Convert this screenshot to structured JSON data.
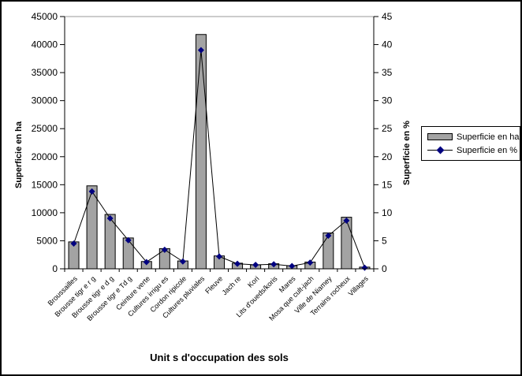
{
  "figure": {
    "background": "#ffffff",
    "border_color": "#000000"
  },
  "chart_data": {
    "type": "bar",
    "subtype": "combo-bar-line-dual-axis",
    "title": "",
    "xlabel": "Unit s d'occupation des sols",
    "ylabel_left": "Superficie en ha",
    "ylabel_right": "Superficie en %",
    "categories": [
      "Broussailles",
      "Brousse tigr e r g",
      "Brousse tigr e d g",
      "Brousse tigr e Td g",
      "Ceinture verte",
      "Cultures irrigu es",
      "Cordon ripicole",
      "Cultures pluviales",
      "Fleuve",
      "Jach re",
      "Kori",
      "Lits d'oueds/koris",
      "Mares",
      "Mosa que cult-jach",
      "Ville de Niamey",
      "Terrains rocheux",
      "Villages"
    ],
    "series": [
      {
        "name": "Superficie en ha",
        "type": "bar",
        "axis": "left",
        "color": "#a3a3a3",
        "values": [
          4800,
          14800,
          9700,
          5500,
          1300,
          3600,
          1400,
          41800,
          2300,
          1000,
          700,
          900,
          550,
          1200,
          6400,
          9200,
          300
        ]
      },
      {
        "name": "Superficie en %",
        "type": "line",
        "axis": "right",
        "marker": "diamond",
        "color": "#000080",
        "values": [
          4.5,
          13.8,
          9.0,
          5.1,
          1.2,
          3.4,
          1.3,
          39.0,
          2.2,
          0.9,
          0.7,
          0.8,
          0.5,
          1.1,
          5.9,
          8.6,
          0.2
        ]
      }
    ],
    "ylim_left": [
      0,
      45000
    ],
    "ytick_step_left": 5000,
    "ylim_right": [
      0,
      45
    ],
    "ytick_step_right": 5,
    "legend_position": "right",
    "grid": "top-line-only"
  },
  "legend": {
    "items": [
      {
        "label": "Superficie en ha",
        "swatch": "bar"
      },
      {
        "label": "Superficie en %",
        "swatch": "line-diamond"
      }
    ]
  },
  "colors": {
    "bar_fill": "#a3a3a3",
    "bar_stroke": "#000000",
    "line": "#000000",
    "marker": "#000080",
    "axis": "#000000",
    "top_gridline": "#999999",
    "text": "#000000"
  }
}
